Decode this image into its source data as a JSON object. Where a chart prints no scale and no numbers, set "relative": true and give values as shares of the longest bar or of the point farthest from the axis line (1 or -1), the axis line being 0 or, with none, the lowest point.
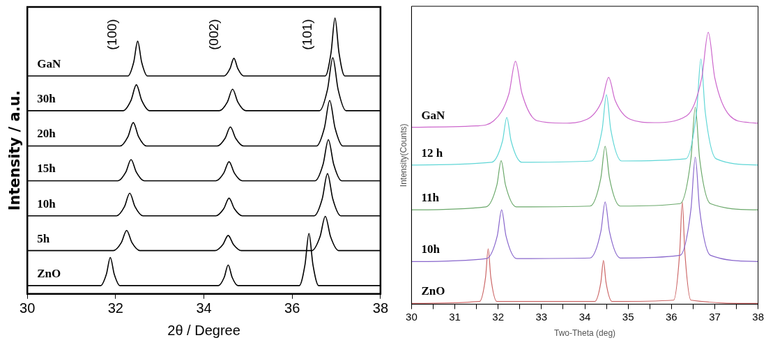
{
  "chart_data": [
    {
      "type": "line",
      "relative": true,
      "xlabel": "2θ / Degree",
      "ylabel": "Intensity / a.u.",
      "xlim": [
        30,
        38
      ],
      "xticks": [
        30,
        32,
        34,
        36,
        38
      ],
      "grid": false,
      "legend": false,
      "marker": "none",
      "line_style": "solid",
      "annotations": [
        "(100)",
        "(002)",
        "(101)"
      ],
      "series": [
        {
          "name": "GaN",
          "color": "#000000",
          "x": [
            30,
            32.28,
            32.41,
            32.5,
            32.59,
            32.72,
            34.46,
            34.59,
            34.68,
            34.77,
            34.9,
            36.75,
            36.88,
            36.97,
            37.06,
            37.19,
            38
          ],
          "values": [
            0.79,
            0.79,
            0.84,
            0.916,
            0.84,
            0.79,
            0.79,
            0.816,
            0.854,
            0.816,
            0.79,
            0.79,
            0.874,
            1,
            0.874,
            0.79,
            0.79
          ]
        },
        {
          "name": "30h",
          "color": "#000000",
          "x": [
            30,
            32.17,
            32.35,
            32.47,
            32.59,
            32.77,
            34.35,
            34.53,
            34.65,
            34.77,
            34.95,
            36.62,
            36.8,
            36.92,
            37.04,
            37.22,
            38
          ],
          "values": [
            0.664,
            0.664,
            0.702,
            0.758,
            0.702,
            0.664,
            0.664,
            0.695,
            0.742,
            0.695,
            0.664,
            0.664,
            0.741,
            0.856,
            0.741,
            0.664,
            0.664
          ]
        },
        {
          "name": "20h",
          "color": "#000000",
          "x": [
            30,
            32.1,
            32.28,
            32.4,
            32.52,
            32.7,
            34.3,
            34.48,
            34.6,
            34.72,
            34.9,
            36.55,
            36.73,
            36.85,
            36.97,
            37.15,
            38
          ],
          "values": [
            0.536,
            0.536,
            0.57,
            0.621,
            0.57,
            0.536,
            0.536,
            0.564,
            0.605,
            0.564,
            0.536,
            0.536,
            0.602,
            0.701,
            0.602,
            0.536,
            0.536
          ]
        },
        {
          "name": "15h",
          "color": "#000000",
          "x": [
            30,
            32.05,
            32.23,
            32.35,
            32.47,
            32.65,
            34.27,
            34.45,
            34.57,
            34.69,
            34.87,
            36.52,
            36.7,
            36.82,
            36.94,
            37.12,
            38
          ],
          "values": [
            0.41,
            0.41,
            0.441,
            0.487,
            0.441,
            0.41,
            0.41,
            0.438,
            0.479,
            0.438,
            0.41,
            0.41,
            0.47,
            0.559,
            0.47,
            0.41,
            0.41
          ]
        },
        {
          "name": "10h",
          "color": "#000000",
          "x": [
            30,
            32.02,
            32.2,
            32.32,
            32.44,
            32.62,
            34.27,
            34.45,
            34.57,
            34.69,
            34.87,
            36.5,
            36.68,
            36.8,
            36.92,
            37.1,
            38
          ],
          "values": [
            0.283,
            0.283,
            0.316,
            0.365,
            0.316,
            0.283,
            0.283,
            0.309,
            0.347,
            0.309,
            0.283,
            0.283,
            0.344,
            0.436,
            0.344,
            0.283,
            0.283
          ]
        },
        {
          "name": "5h",
          "color": "#000000",
          "x": [
            30,
            31.95,
            32.13,
            32.25,
            32.37,
            32.55,
            34.25,
            34.43,
            34.55,
            34.67,
            34.85,
            36.45,
            36.63,
            36.75,
            36.87,
            37.05,
            38
          ],
          "values": [
            0.157,
            0.157,
            0.186,
            0.23,
            0.186,
            0.157,
            0.157,
            0.179,
            0.212,
            0.179,
            0.157,
            0.157,
            0.207,
            0.281,
            0.207,
            0.157,
            0.157
          ]
        },
        {
          "name": "ZnO",
          "color": "#000000",
          "x": [
            30,
            31.66,
            31.79,
            31.88,
            31.97,
            32.1,
            34.33,
            34.46,
            34.55,
            34.64,
            34.77,
            36.16,
            36.29,
            36.38,
            36.47,
            36.6,
            38
          ],
          "values": [
            0.03,
            0.03,
            0.071,
            0.132,
            0.071,
            0.03,
            0.03,
            0.06,
            0.105,
            0.06,
            0.03,
            0.03,
            0.106,
            0.219,
            0.106,
            0.03,
            0.03
          ]
        }
      ]
    },
    {
      "type": "line",
      "relative": true,
      "xlabel": "Two-Theta (deg)",
      "ylabel": "Intensity(Counts)",
      "xlim": [
        30,
        38
      ],
      "xticks": [
        30,
        {
          "value": 30.5,
          "label": null
        },
        31,
        {
          "value": 31.5,
          "label": null
        },
        32,
        {
          "value": 32.5,
          "label": null
        },
        33,
        {
          "value": 33.5,
          "label": null
        },
        34,
        {
          "value": 34.5,
          "label": null
        },
        35,
        {
          "value": 35.5,
          "label": null
        },
        36,
        {
          "value": 36.5,
          "label": null
        },
        37,
        {
          "value": 37.5,
          "label": null
        },
        38
      ],
      "grid": false,
      "legend": false,
      "marker": "none",
      "line_style": "solid",
      "series": [
        {
          "name": "GaN",
          "color": "#cc66cc",
          "x": [
            30,
            31.5,
            31.9,
            32.25,
            32.4,
            32.55,
            32.9,
            33.5,
            34.05,
            34.4,
            34.55,
            34.7,
            35.05,
            35.6,
            36.35,
            36.7,
            36.85,
            37.0,
            37.35,
            37.8,
            38
          ],
          "values": [
            0.651,
            0.656,
            0.675,
            0.775,
            0.894,
            0.775,
            0.675,
            0.666,
            0.68,
            0.75,
            0.834,
            0.75,
            0.68,
            0.668,
            0.693,
            0.833,
            1,
            0.833,
            0.693,
            0.668,
            0.666
          ]
        },
        {
          "name": "12 h",
          "color": "#5fd6d6",
          "x": [
            30,
            31.85,
            32.1,
            32.2,
            32.3,
            32.55,
            34.15,
            34.4,
            34.5,
            34.6,
            34.85,
            36.33,
            36.58,
            36.68,
            36.78,
            37.03,
            38
          ],
          "values": [
            0.512,
            0.522,
            0.6,
            0.687,
            0.6,
            0.522,
            0.527,
            0.642,
            0.771,
            0.642,
            0.527,
            0.535,
            0.707,
            0.902,
            0.707,
            0.535,
            0.512
          ]
        },
        {
          "name": "11h",
          "color": "#6aa86a",
          "x": [
            30,
            31.72,
            31.97,
            32.07,
            32.17,
            32.42,
            34.12,
            34.37,
            34.47,
            34.57,
            34.82,
            36.2,
            36.45,
            36.55,
            36.65,
            36.9,
            38
          ],
          "values": [
            0.347,
            0.358,
            0.438,
            0.528,
            0.438,
            0.358,
            0.361,
            0.464,
            0.581,
            0.464,
            0.361,
            0.37,
            0.536,
            0.725,
            0.536,
            0.37,
            0.347
          ]
        },
        {
          "name": "10h",
          "color": "#8866cc",
          "x": [
            30,
            31.73,
            31.98,
            32.08,
            32.18,
            32.43,
            34.12,
            34.37,
            34.47,
            34.57,
            34.82,
            36.2,
            36.45,
            36.55,
            36.65,
            36.9,
            38
          ],
          "values": [
            0.157,
            0.168,
            0.252,
            0.347,
            0.252,
            0.168,
            0.17,
            0.267,
            0.376,
            0.267,
            0.17,
            0.18,
            0.349,
            0.541,
            0.349,
            0.18,
            0.157
          ]
        },
        {
          "name": "ZnO",
          "color": "#cc6666",
          "x": [
            30,
            31.57,
            31.71,
            31.77,
            31.83,
            31.97,
            34.23,
            34.37,
            34.43,
            34.49,
            34.63,
            36.05,
            36.19,
            36.25,
            36.31,
            36.45,
            38
          ],
          "values": [
            0.003,
            0.01,
            0.1,
            0.204,
            0.1,
            0.01,
            0.01,
            0.08,
            0.161,
            0.08,
            0.01,
            0.015,
            0.19,
            0.376,
            0.19,
            0.015,
            0.003
          ]
        }
      ]
    }
  ]
}
